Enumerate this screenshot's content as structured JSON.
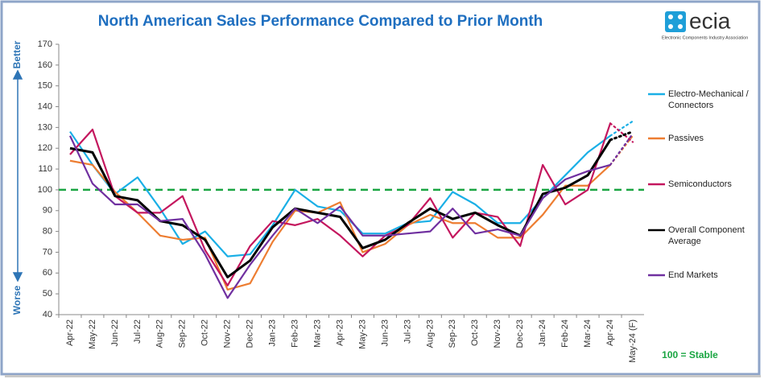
{
  "chart_data": {
    "type": "line",
    "title": "North American Sales Performance Compared to Prior Month",
    "categories": [
      "Apr-22",
      "May-22",
      "Jun-22",
      "Jul-22",
      "Aug-22",
      "Sep-22",
      "Oct-22",
      "Nov-22",
      "Dec-22",
      "Jan-23",
      "Feb-23",
      "Mar-23",
      "Apr-23",
      "May-23",
      "Jun-23",
      "Jul-23",
      "Aug-23",
      "Sep-23",
      "Oct-23",
      "Nov-23",
      "Dec-23",
      "Jan-24",
      "Feb-24",
      "Mar-24",
      "Apr-24",
      "May-24 (F)"
    ],
    "series": [
      {
        "name": "Electro-Mechanical / Connectors",
        "color": "#1aafe6",
        "values": [
          128,
          112,
          98,
          106,
          91,
          74,
          80,
          68,
          69,
          83,
          100,
          92,
          90,
          79,
          79,
          84,
          85,
          99,
          93,
          84,
          84,
          96,
          107,
          118,
          126,
          133
        ]
      },
      {
        "name": "Passives",
        "color": "#ed7d31",
        "values": [
          114,
          112,
          99,
          89,
          78,
          76,
          77,
          52,
          55,
          75,
          90,
          89,
          94,
          70,
          74,
          83,
          88,
          84,
          84,
          77,
          77,
          88,
          102,
          102,
          112,
          126
        ]
      },
      {
        "name": "Semiconductors",
        "color": "#c4175e",
        "values": [
          117,
          129,
          97,
          89,
          89,
          97,
          71,
          54,
          73,
          85,
          83,
          86,
          78,
          68,
          78,
          83,
          96,
          77,
          89,
          87,
          73,
          112,
          93,
          100,
          132,
          123
        ]
      },
      {
        "name": "Overall Component Average",
        "color": "#000000",
        "values": [
          120,
          118,
          97,
          95,
          85,
          83,
          76,
          58,
          66,
          82,
          91,
          89,
          87,
          72,
          76,
          84,
          91,
          86,
          89,
          83,
          78,
          98,
          101,
          107,
          124,
          128
        ]
      },
      {
        "name": "End Markets",
        "color": "#7030a0",
        "values": [
          126,
          103,
          93,
          93,
          85,
          86,
          69,
          48,
          64,
          78,
          91,
          84,
          92,
          78,
          78,
          79,
          80,
          91,
          79,
          81,
          78,
          96,
          105,
          109,
          112,
          127
        ]
      }
    ],
    "ylim": [
      40,
      170
    ],
    "yticks": [
      40,
      50,
      60,
      70,
      80,
      90,
      100,
      110,
      120,
      130,
      140,
      150,
      160,
      170
    ],
    "dotted_last_segment": true,
    "reference_line": {
      "value": 100,
      "label": "100 = Stable",
      "color": "#1aa542"
    },
    "axis_annotations": {
      "top": "Better",
      "bottom": "Worse"
    },
    "legend": "right"
  },
  "logo": {
    "name": "ecia",
    "tagline": "Electronic Components Industry Association"
  }
}
